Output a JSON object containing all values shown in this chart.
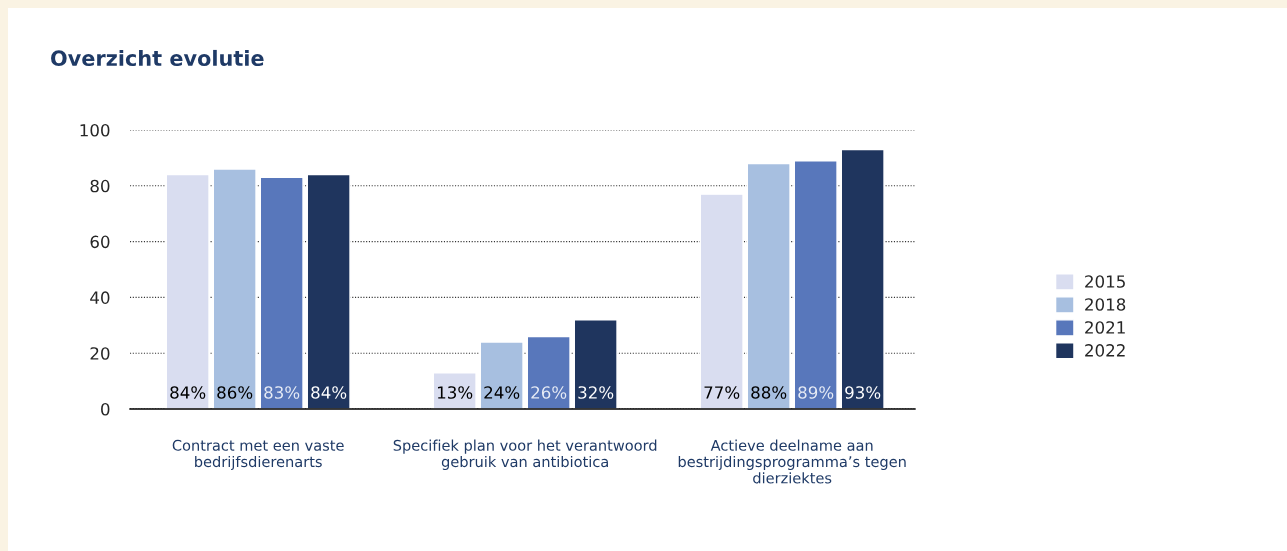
{
  "chart_data": {
    "type": "bar",
    "title": "Overzicht evolutie",
    "categories": [
      "Contract met een vaste\nbedrijfsdierenarts",
      "Specifiek plan voor het verantwoord\ngebruik van antibiotica",
      "Actieve deelname aan\nbestrijdingsprogramma’s tegen\ndierziektes"
    ],
    "series": [
      {
        "name": "2015",
        "color": "#d9ddf0",
        "values": [
          84,
          13,
          77
        ],
        "value_labels": [
          "84%",
          "13%",
          "77%"
        ]
      },
      {
        "name": "2018",
        "color": "#a7bfe0",
        "values": [
          86,
          24,
          88
        ],
        "value_labels": [
          "86%",
          "24%",
          "88%"
        ]
      },
      {
        "name": "2021",
        "color": "#5877bb",
        "values": [
          83,
          26,
          89
        ],
        "value_labels": [
          "83%",
          "26%",
          "89%"
        ]
      },
      {
        "name": "2022",
        "color": "#1f355e",
        "values": [
          84,
          32,
          93
        ],
        "value_labels": [
          "84%",
          "32%",
          "93%"
        ]
      }
    ],
    "ylim": [
      0,
      100
    ],
    "yticks": [
      0,
      20,
      40,
      60,
      80,
      100
    ],
    "grid": "y",
    "legend": "right"
  }
}
